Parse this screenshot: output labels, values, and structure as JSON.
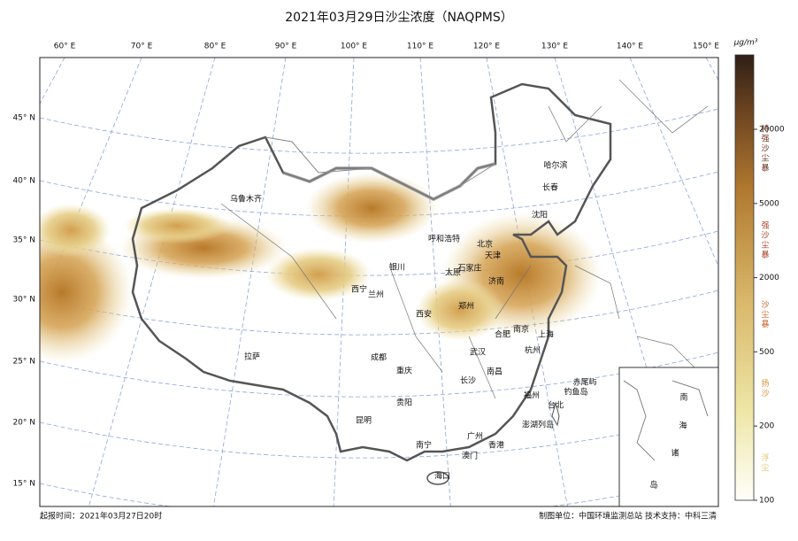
{
  "title": "2021年03月29日沙尘浓度（NAQPMS）",
  "longitude_labels": [
    "60° E",
    "70° E",
    "80° E",
    "90° E",
    "100° E",
    "110° E",
    "120° E",
    "130° E",
    "140° E",
    "150° E"
  ],
  "latitude_labels": [
    "45° N",
    "40° N",
    "35° N",
    "30° N",
    "25° N",
    "20° N",
    "15° N"
  ],
  "cities": [
    "乌鲁木齐",
    "哈尔滨",
    "长春",
    "沈阳",
    "呼和浩特",
    "北京",
    "天津",
    "石家庄",
    "太原",
    "银川",
    "济南",
    "西宁",
    "兰州",
    "郑州",
    "西安",
    "南京",
    "上海",
    "合肥",
    "杭州",
    "拉萨",
    "成都",
    "武汉",
    "重庆",
    "南昌",
    "长沙",
    "赤尾屿",
    "钓鱼岛",
    "贵阳",
    "福州",
    "台北",
    "昆明",
    "澎湖列岛",
    "广州",
    "香港",
    "南宁",
    "澳门",
    "海口"
  ],
  "inset_labels": [
    "南",
    "海",
    "诸",
    "岛"
  ],
  "colorbar": {
    "unit": "μg/m³",
    "ticks": [
      100,
      200,
      500,
      2000,
      5000,
      20000
    ],
    "levels": [
      "浮尘",
      "扬沙",
      "沙尘暴",
      "强沙尘暴",
      "特强沙尘暴"
    ]
  },
  "footer": {
    "issue_time": "起报时间：2021年03月27日20时",
    "credits": "制图单位：中国环境监测总站    技术支持：中科三清"
  }
}
